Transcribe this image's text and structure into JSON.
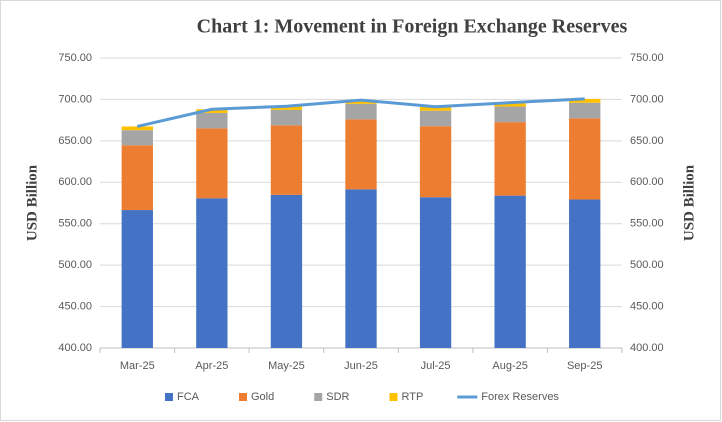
{
  "chart_data": {
    "type": "bar",
    "stacked": true,
    "title": "Chart 1: Movement in Foreign Exchange Reserves",
    "y_label": "USD Billion",
    "y2_label": "USD Billion",
    "categories": [
      "Mar-25",
      "Apr-25",
      "May-25",
      "Jun-25",
      "Jul-25",
      "Aug-25",
      "Sep-25"
    ],
    "series": [
      {
        "name": "FCA",
        "color": "#4472c4",
        "values": [
          566.5,
          580.7,
          584.8,
          591.5,
          582.0,
          583.9,
          579.2
        ]
      },
      {
        "name": "Gold",
        "color": "#ed7d31",
        "values": [
          78.2,
          84.4,
          84.0,
          84.5,
          85.7,
          88.7,
          98.0
        ]
      },
      {
        "name": "SDR",
        "color": "#a5a5a5",
        "values": [
          18.2,
          18.6,
          18.6,
          18.7,
          18.7,
          18.8,
          18.8
        ]
      },
      {
        "name": "RTP",
        "color": "#ffc000",
        "values": [
          4.5,
          4.4,
          4.4,
          4.4,
          4.8,
          4.7,
          4.6
        ]
      },
      {
        "name": "Forex Reserves",
        "color": "#5b9bd5",
        "type": "line",
        "values": [
          667.4,
          688.1,
          691.8,
          699.1,
          691.2,
          696.1,
          700.6
        ]
      }
    ],
    "ylim": [
      400,
      750
    ],
    "yticks": [
      {
        "value": 400,
        "label": "400.00"
      },
      {
        "value": 450,
        "label": "450.00"
      },
      {
        "value": 500,
        "label": "500.00"
      },
      {
        "value": 550,
        "label": "550.00"
      },
      {
        "value": 600,
        "label": "600.00"
      },
      {
        "value": 650,
        "label": "650.00"
      },
      {
        "value": 700,
        "label": "700.00"
      },
      {
        "value": 750,
        "label": "750.00"
      }
    ],
    "y2lim": [
      400,
      750
    ],
    "y2ticks": [
      {
        "value": 400,
        "label": "400.00"
      },
      {
        "value": 450,
        "label": "450.00"
      },
      {
        "value": 500,
        "label": "500.00"
      },
      {
        "value": 550,
        "label": "550.00"
      },
      {
        "value": 600,
        "label": "600.00"
      },
      {
        "value": 650,
        "label": "650.00"
      },
      {
        "value": 700,
        "label": "700.00"
      },
      {
        "value": 750,
        "label": "750.00"
      }
    ],
    "grid": true,
    "legend": "bottom"
  }
}
